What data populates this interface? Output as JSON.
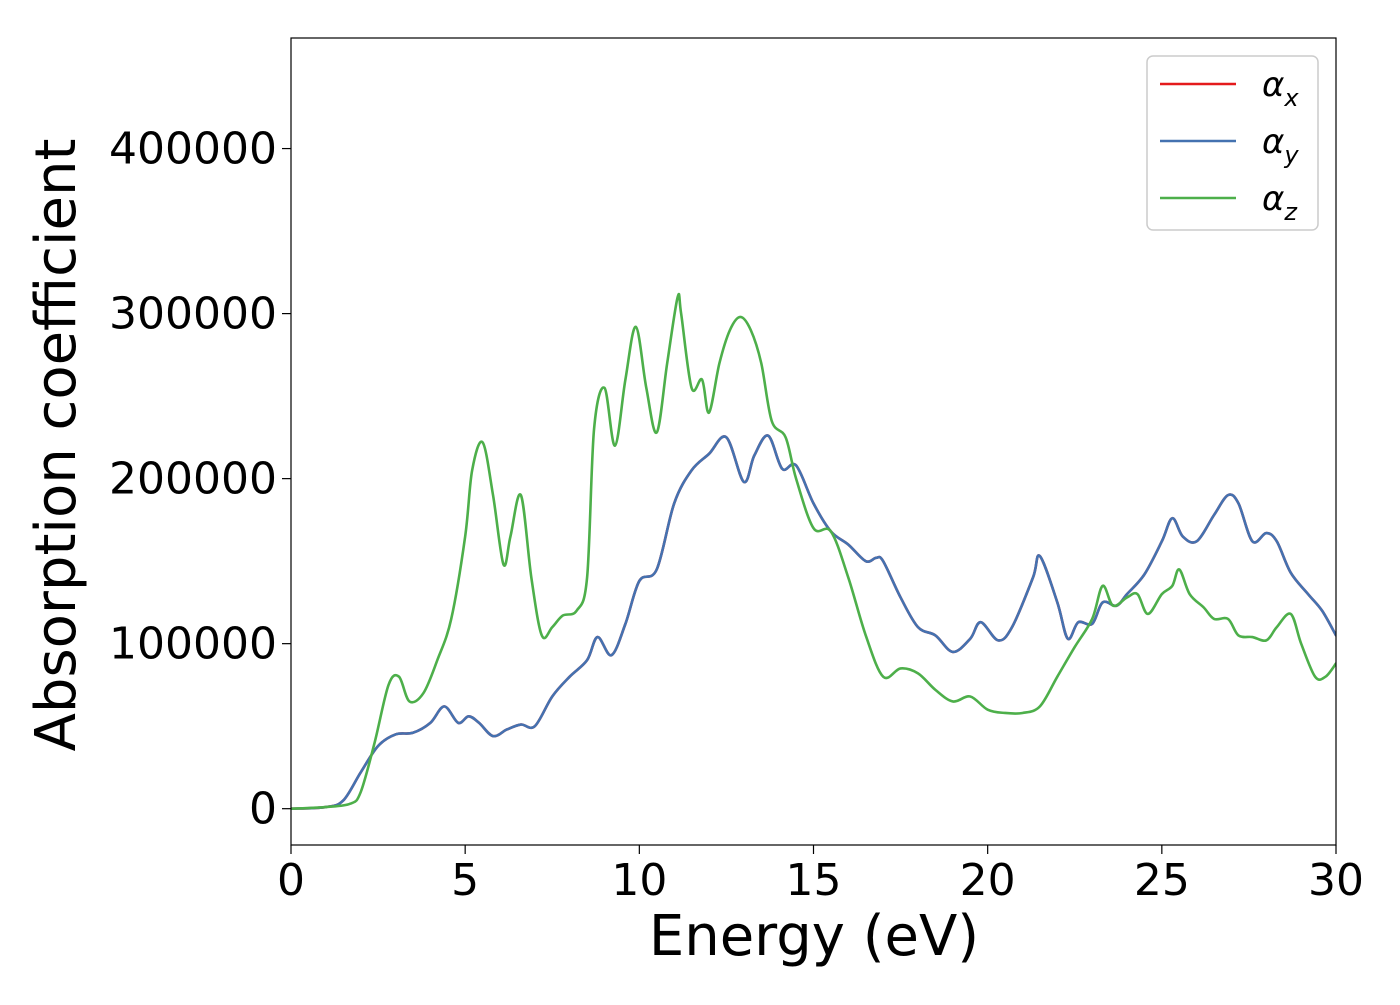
{
  "chart_data": {
    "type": "line",
    "title": "",
    "xlabel": "Energy (eV)",
    "ylabel": "Absorption coefficient",
    "xlim": [
      0,
      30
    ],
    "ylim": [
      -22000,
      467000
    ],
    "xticks": [
      0,
      5,
      10,
      15,
      20,
      25,
      30
    ],
    "yticks": [
      0,
      100000,
      200000,
      300000,
      400000
    ],
    "grid": false,
    "legend_position": "top-right",
    "series": [
      {
        "name": "α_x",
        "legend_base": "α",
        "legend_sub": "x",
        "color": "#e41a1c",
        "x": [
          0,
          1,
          1.5,
          2,
          2.5,
          3,
          3.5,
          4,
          4.4,
          4.8,
          5.1,
          5.4,
          5.8,
          6.2,
          6.6,
          7,
          7.5,
          8,
          8.5,
          8.8,
          9.2,
          9.6,
          10,
          10.5,
          11,
          11.5,
          12,
          12.5,
          13,
          13.3,
          13.7,
          14.1,
          14.5,
          15,
          15.5,
          16,
          16.5,
          16.8,
          17,
          17.5,
          18,
          18.5,
          19,
          19.5,
          19.8,
          20.3,
          20.7,
          21.3,
          21.5,
          22,
          22.3,
          22.6,
          23,
          23.3,
          23.7,
          24,
          24.5,
          25,
          25.3,
          25.6,
          26,
          26.5,
          26.9,
          27.2,
          27.6,
          28,
          28.3,
          28.7,
          29.2,
          29.6,
          30
        ],
        "y": [
          0,
          1000,
          5000,
          22000,
          38000,
          45000,
          46000,
          52000,
          62000,
          52000,
          56000,
          52000,
          44000,
          48000,
          51000,
          50000,
          68000,
          80000,
          90000,
          104000,
          93000,
          112000,
          138000,
          145000,
          185000,
          205000,
          215000,
          225000,
          198000,
          214000,
          226000,
          206000,
          208000,
          185000,
          168000,
          160000,
          150000,
          152000,
          150000,
          128000,
          110000,
          105000,
          95000,
          103000,
          113000,
          102000,
          110000,
          140000,
          153000,
          125000,
          103000,
          113000,
          112000,
          125000,
          123000,
          130000,
          142000,
          162000,
          176000,
          165000,
          162000,
          178000,
          190000,
          185000,
          162000,
          167000,
          162000,
          143000,
          130000,
          120000,
          105000
        ]
      },
      {
        "name": "α_y",
        "legend_base": "α",
        "legend_sub": "y",
        "color": "#4472b0",
        "x": [
          0,
          1,
          1.5,
          2,
          2.5,
          3,
          3.5,
          4,
          4.4,
          4.8,
          5.1,
          5.4,
          5.8,
          6.2,
          6.6,
          7,
          7.5,
          8,
          8.5,
          8.8,
          9.2,
          9.6,
          10,
          10.5,
          11,
          11.5,
          12,
          12.5,
          13,
          13.3,
          13.7,
          14.1,
          14.5,
          15,
          15.5,
          16,
          16.5,
          16.8,
          17,
          17.5,
          18,
          18.5,
          19,
          19.5,
          19.8,
          20.3,
          20.7,
          21.3,
          21.5,
          22,
          22.3,
          22.6,
          23,
          23.3,
          23.7,
          24,
          24.5,
          25,
          25.3,
          25.6,
          26,
          26.5,
          26.9,
          27.2,
          27.6,
          28,
          28.3,
          28.7,
          29.2,
          29.6,
          30
        ],
        "y": [
          0,
          1000,
          5000,
          22000,
          38000,
          45000,
          46000,
          52000,
          62000,
          52000,
          56000,
          52000,
          44000,
          48000,
          51000,
          50000,
          68000,
          80000,
          90000,
          104000,
          93000,
          112000,
          138000,
          145000,
          185000,
          205000,
          215000,
          225000,
          198000,
          214000,
          226000,
          206000,
          208000,
          185000,
          168000,
          160000,
          150000,
          152000,
          150000,
          128000,
          110000,
          105000,
          95000,
          103000,
          113000,
          102000,
          110000,
          140000,
          153000,
          125000,
          103000,
          113000,
          112000,
          125000,
          123000,
          130000,
          142000,
          162000,
          176000,
          165000,
          162000,
          178000,
          190000,
          185000,
          162000,
          167000,
          162000,
          143000,
          130000,
          120000,
          105000
        ]
      },
      {
        "name": "α_z",
        "legend_base": "α",
        "legend_sub": "z",
        "color": "#4daf4a",
        "x": [
          0,
          1,
          1.7,
          2,
          2.4,
          2.8,
          3.1,
          3.4,
          3.8,
          4.2,
          4.6,
          5,
          5.2,
          5.5,
          5.8,
          6.1,
          6.3,
          6.6,
          6.9,
          7.2,
          7.5,
          7.8,
          8.2,
          8.5,
          8.7,
          9,
          9.3,
          9.6,
          9.9,
          10.2,
          10.5,
          10.8,
          11.1,
          11.2,
          11.5,
          11.8,
          12,
          12.3,
          12.6,
          12.9,
          13.2,
          13.5,
          13.8,
          14.2,
          14.5,
          15,
          15.5,
          16,
          16.5,
          17,
          17.5,
          18,
          18.5,
          19,
          19.5,
          20,
          20.5,
          21,
          21.5,
          22,
          22.5,
          23,
          23.3,
          23.6,
          24,
          24.3,
          24.6,
          25,
          25.3,
          25.5,
          25.8,
          26.2,
          26.5,
          26.9,
          27.2,
          27.6,
          28,
          28.3,
          28.7,
          29,
          29.4,
          29.7,
          30
        ],
        "y": [
          0,
          1000,
          3000,
          10000,
          40000,
          75000,
          80000,
          65000,
          70000,
          90000,
          115000,
          165000,
          205000,
          222000,
          190000,
          148000,
          165000,
          190000,
          140000,
          105000,
          110000,
          117000,
          120000,
          140000,
          230000,
          255000,
          220000,
          260000,
          292000,
          255000,
          228000,
          270000,
          310000,
          300000,
          255000,
          260000,
          240000,
          270000,
          290000,
          298000,
          290000,
          270000,
          235000,
          225000,
          200000,
          170000,
          168000,
          140000,
          105000,
          80000,
          85000,
          82000,
          72000,
          65000,
          68000,
          60000,
          58000,
          58000,
          62000,
          80000,
          98000,
          115000,
          135000,
          123000,
          128000,
          130000,
          118000,
          130000,
          135000,
          145000,
          130000,
          122000,
          115000,
          115000,
          105000,
          104000,
          102000,
          110000,
          118000,
          100000,
          80000,
          80000,
          88000
        ]
      }
    ]
  }
}
